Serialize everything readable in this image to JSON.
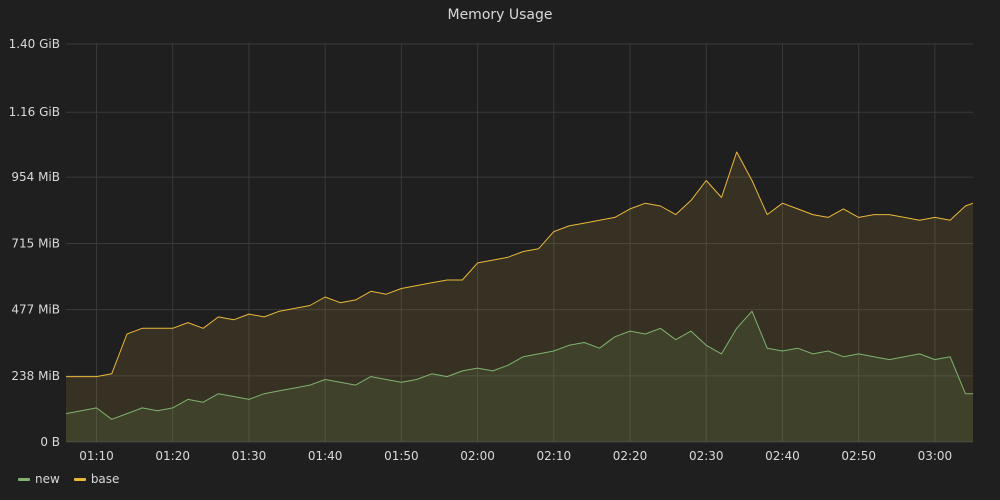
{
  "colors": {
    "background": "#1f1f20",
    "grid": "#3a3a3c",
    "text": "#d8d9da",
    "new": "#7eb26d",
    "base": "#eab839"
  },
  "chart_data": {
    "type": "line",
    "title": "Memory Usage",
    "xlabel": "",
    "ylabel": "",
    "x_range": [
      "01:06",
      "03:05"
    ],
    "x_ticks": [
      "01:10",
      "01:20",
      "01:30",
      "01:40",
      "01:50",
      "02:00",
      "02:10",
      "02:20",
      "02:30",
      "02:40",
      "02:50",
      "03:00"
    ],
    "ylim": [
      0,
      1.4
    ],
    "y_unit": "GiB",
    "y_ticks": [
      {
        "value": 0,
        "label": "0 B"
      },
      {
        "value": 0.2324,
        "label": "238 MiB"
      },
      {
        "value": 0.4658,
        "label": "477 MiB"
      },
      {
        "value": 0.6982,
        "label": "715 MiB"
      },
      {
        "value": 0.9316,
        "label": "954 MiB"
      },
      {
        "value": 1.16,
        "label": "1.16 GiB"
      },
      {
        "value": 1.4,
        "label": "1.40 GiB"
      }
    ],
    "grid": true,
    "legend_position": "bottom-left",
    "fill_area": true,
    "x": [
      "01:06",
      "01:08",
      "01:10",
      "01:12",
      "01:14",
      "01:16",
      "01:18",
      "01:20",
      "01:22",
      "01:24",
      "01:26",
      "01:28",
      "01:30",
      "01:32",
      "01:34",
      "01:36",
      "01:38",
      "01:40",
      "01:42",
      "01:44",
      "01:46",
      "01:48",
      "01:50",
      "01:52",
      "01:54",
      "01:56",
      "01:58",
      "02:00",
      "02:02",
      "02:04",
      "02:06",
      "02:08",
      "02:10",
      "02:12",
      "02:14",
      "02:16",
      "02:18",
      "02:20",
      "02:22",
      "02:24",
      "02:26",
      "02:28",
      "02:30",
      "02:32",
      "02:34",
      "02:36",
      "02:38",
      "02:40",
      "02:42",
      "02:44",
      "02:46",
      "02:48",
      "02:50",
      "02:52",
      "02:54",
      "02:56",
      "02:58",
      "03:00",
      "03:02",
      "03:04",
      "03:05"
    ],
    "series": [
      {
        "name": "new",
        "color": "#7eb26d",
        "values": [
          0.1,
          0.11,
          0.12,
          0.08,
          0.1,
          0.12,
          0.11,
          0.12,
          0.15,
          0.14,
          0.17,
          0.16,
          0.15,
          0.17,
          0.18,
          0.19,
          0.2,
          0.22,
          0.21,
          0.2,
          0.23,
          0.22,
          0.21,
          0.22,
          0.24,
          0.23,
          0.25,
          0.26,
          0.25,
          0.27,
          0.3,
          0.31,
          0.32,
          0.34,
          0.35,
          0.33,
          0.37,
          0.39,
          0.38,
          0.4,
          0.36,
          0.39,
          0.34,
          0.31,
          0.4,
          0.46,
          0.33,
          0.32,
          0.33,
          0.31,
          0.32,
          0.3,
          0.31,
          0.3,
          0.29,
          0.3,
          0.31,
          0.29,
          0.3,
          0.17,
          0.17
        ]
      },
      {
        "name": "base",
        "color": "#eab839",
        "values": [
          0.23,
          0.23,
          0.23,
          0.24,
          0.38,
          0.4,
          0.4,
          0.4,
          0.42,
          0.4,
          0.44,
          0.43,
          0.45,
          0.44,
          0.46,
          0.47,
          0.48,
          0.51,
          0.49,
          0.5,
          0.53,
          0.52,
          0.54,
          0.55,
          0.56,
          0.57,
          0.57,
          0.63,
          0.64,
          0.65,
          0.67,
          0.68,
          0.74,
          0.76,
          0.77,
          0.78,
          0.79,
          0.82,
          0.84,
          0.83,
          0.8,
          0.85,
          0.92,
          0.86,
          1.02,
          0.92,
          0.8,
          0.84,
          0.82,
          0.8,
          0.79,
          0.82,
          0.79,
          0.8,
          0.8,
          0.79,
          0.78,
          0.79,
          0.78,
          0.83,
          0.84
        ]
      }
    ]
  }
}
